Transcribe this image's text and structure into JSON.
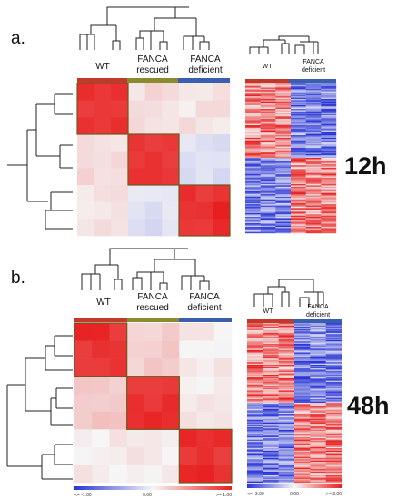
{
  "colors": {
    "wt_bar": "#c0392b",
    "rescued_bar": "#8a8a2e",
    "deficient_bar": "#3a5fb0",
    "cluster_box": "#6b5a1e",
    "high": "#e81f1f",
    "low": "#2a36d6",
    "mid": "#f6f6f6"
  },
  "panels": [
    {
      "panel_label": "a.",
      "time_label": "12h",
      "corr_groups": [
        {
          "line1": "WT",
          "line2": ""
        },
        {
          "line1": "FANCA",
          "line2": "rescued"
        },
        {
          "line1": "FANCA",
          "line2": "deficient"
        }
      ],
      "expr_groups": [
        {
          "line1": "WT",
          "line2": ""
        },
        {
          "line1": "FANCA",
          "line2": "deficient"
        }
      ]
    },
    {
      "panel_label": "b.",
      "time_label": "48h",
      "corr_groups": [
        {
          "line1": "WT",
          "line2": ""
        },
        {
          "line1": "FANCA",
          "line2": "rescued"
        },
        {
          "line1": "FANCA",
          "line2": "deficient"
        }
      ],
      "expr_groups": [
        {
          "line1": "WT",
          "line2": ""
        },
        {
          "line1": "FANCA",
          "line2": "deficient"
        }
      ],
      "corr_scale": {
        "min": "<= -1.00",
        "mid": "0.00",
        "max": ">= 1.00"
      },
      "expr_scale": {
        "min": "<= -3.00",
        "mid": "0.00",
        "max": ">= 3.00"
      }
    }
  ]
}
